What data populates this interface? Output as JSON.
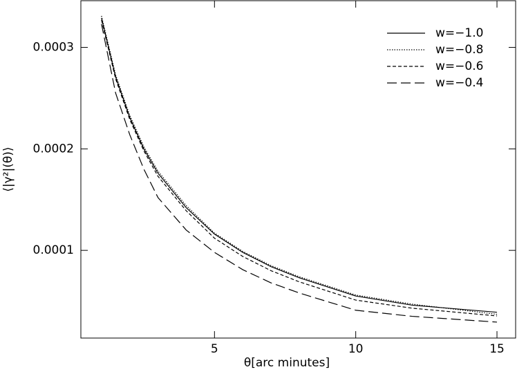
{
  "chart_data": {
    "type": "line",
    "x_label": "θ[arc minutes]",
    "y_label": "⟨|γ²|(θ)⟩",
    "x": [
      1,
      1.5,
      2,
      2.5,
      3,
      4,
      5,
      6,
      7,
      8,
      10,
      12,
      15
    ],
    "series": [
      {
        "name": "w=−1.0",
        "color": "#000000",
        "dash": "solid",
        "values": [
          0.000329,
          0.000271,
          0.000231,
          0.0002,
          0.000176,
          0.000142,
          0.000116,
          9.8e-05,
          8.4e-05,
          7.3e-05,
          5.5e-05,
          4.6e-05,
          3.9e-05
        ]
      },
      {
        "name": "w=−0.8",
        "color": "#000000",
        "dash": "dotted",
        "values": [
          0.000331,
          0.000273,
          0.000233,
          0.000202,
          0.000178,
          0.000144,
          0.000117,
          9.9e-05,
          8.5e-05,
          7.4e-05,
          5.6e-05,
          4.7e-05,
          3.7e-05
        ]
      },
      {
        "name": "w=−0.6",
        "color": "#000000",
        "dash": "dashed",
        "values": [
          0.000327,
          0.000269,
          0.000229,
          0.000198,
          0.000173,
          0.000139,
          0.000112,
          9.4e-05,
          8e-05,
          6.9e-05,
          5.1e-05,
          4.3e-05,
          3.54e-05
        ]
      },
      {
        "name": "w=−0.4",
        "color": "#000000",
        "dash": "longdash",
        "values": [
          0.000323,
          0.000255,
          0.000214,
          0.00018,
          0.000152,
          0.00012,
          9.8e-05,
          8.1e-05,
          6.8e-05,
          5.8e-05,
          4.1e-05,
          3.5e-05,
          2.93e-05
        ]
      }
    ],
    "xlim": [
      0.27,
      15.66
    ],
    "xticks": [
      5,
      10,
      15
    ],
    "ylim": [
      1.36e-05,
      0.000346
    ],
    "yticks": [
      0.0001,
      0.0002,
      0.0003
    ],
    "legend": "upper right"
  }
}
